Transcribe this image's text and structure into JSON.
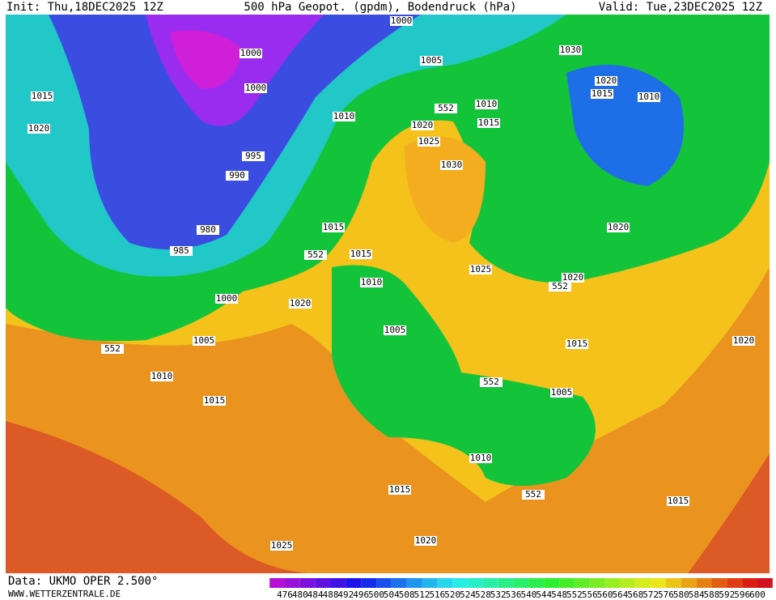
{
  "header": {
    "init": "Init: Thu,18DEC2025 12Z",
    "title": "500 hPa Geopot. (gpdm), Bodendruck (hPa)",
    "valid": "Valid: Tue,23DEC2025 12Z"
  },
  "isobar_labels": [
    1000,
    1000,
    1000,
    1005,
    1030,
    1015,
    1020,
    1010,
    1010,
    1015,
    1020,
    1025,
    1030,
    1020,
    1015,
    1010,
    995,
    990,
    980,
    985,
    1015,
    1015,
    1010,
    1025,
    1020,
    1020,
    1000,
    1020,
    1005,
    1010,
    1015,
    1005,
    1015,
    1020,
    1005,
    1010,
    1015,
    1015,
    1020,
    1025
  ],
  "height_labels": [
    552,
    552,
    552,
    552,
    552,
    552
  ],
  "footer": {
    "data": "Data: UKMO OPER 2.500°",
    "website": "WWW.WETTERZENTRALE.DE"
  },
  "colorbar": {
    "labels": [
      476,
      480,
      484,
      488,
      492,
      496,
      500,
      504,
      508,
      512,
      516,
      520,
      524,
      528,
      532,
      536,
      540,
      544,
      548,
      552,
      556,
      560,
      564,
      568,
      572,
      576,
      580,
      584,
      588,
      592,
      596,
      600
    ]
  }
}
